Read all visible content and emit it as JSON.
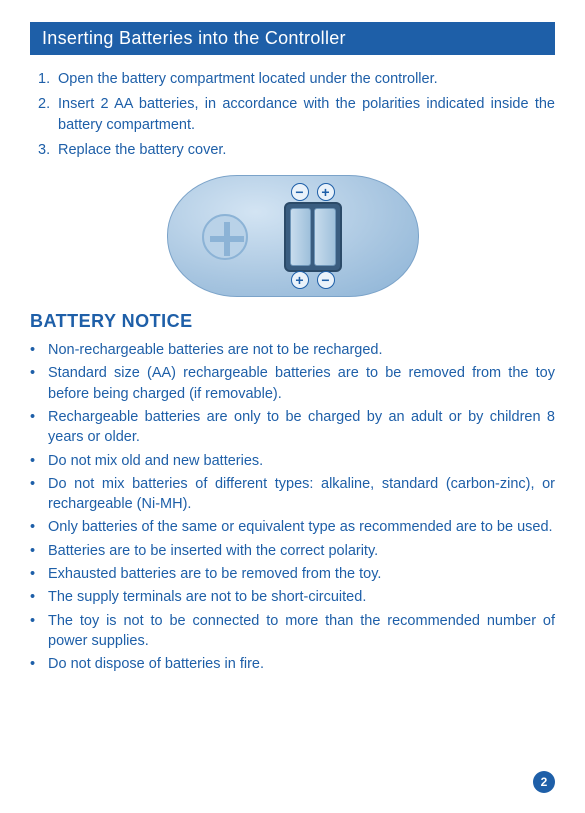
{
  "colors": {
    "primary": "#1e5fa8",
    "bg": "#ffffff"
  },
  "title": "Inserting Batteries into the Controller",
  "steps": [
    {
      "num": "1.",
      "text": "Open the battery compartment located under the controller."
    },
    {
      "num": "2.",
      "text": "Insert 2 AA batteries, in accordance with the polarities indicated inside the battery compartment."
    },
    {
      "num": "3.",
      "text": "Replace the battery cover."
    }
  ],
  "diagram": {
    "polarity_top_left": "−",
    "polarity_top_right": "+",
    "polarity_bottom_left": "+",
    "polarity_bottom_right": "−"
  },
  "notice_title": "BATTERY NOTICE",
  "notices": [
    "Non-rechargeable batteries are not to be recharged.",
    "Standard size (AA) rechargeable batteries are to be removed from the toy before being charged (if removable).",
    "Rechargeable batteries are only to be charged by an adult or by children 8 years or older.",
    "Do not mix old and new batteries.",
    "Do not mix batteries of different types: alkaline, standard (carbon-zinc), or rechargeable (Ni-MH).",
    "Only batteries of the same or equivalent type as recommended are to be used.",
    "Batteries are to be inserted with the correct polarity.",
    "Exhausted batteries are to be removed from the toy.",
    "The supply terminals are not to be short-circuited.",
    "The toy is not to be connected to more than the recommended number of power supplies.",
    "Do not dispose of batteries in fire."
  ],
  "page_number": "2"
}
